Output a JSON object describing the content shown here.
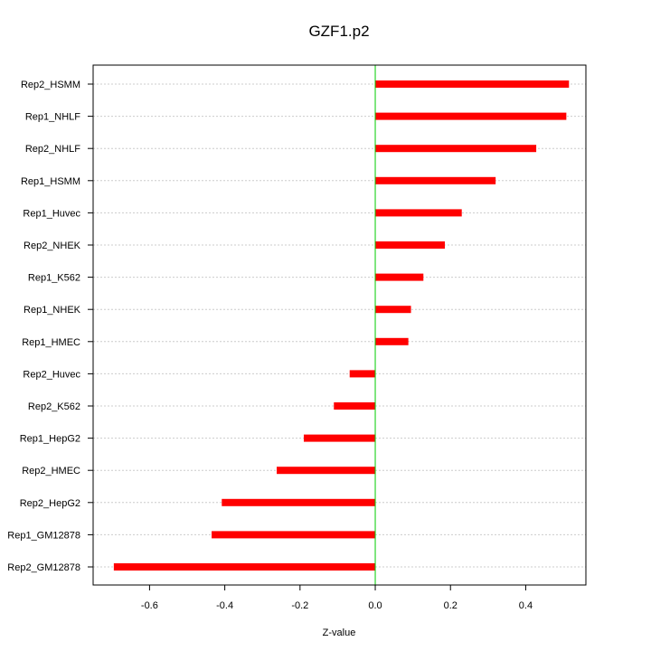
{
  "chart_data": {
    "type": "bar",
    "orientation": "horizontal",
    "title": "GZF1.p2",
    "xlabel": "Z-value",
    "ylabel": "",
    "xlim": [
      -0.75,
      0.56
    ],
    "xticks": [
      -0.6,
      -0.4,
      -0.2,
      0.0,
      0.2,
      0.4
    ],
    "xtick_labels": [
      "-0.6",
      "-0.4",
      "-0.2",
      "0.0",
      "0.2",
      "0.4"
    ],
    "categories": [
      "Rep2_HSMM",
      "Rep1_NHLF",
      "Rep2_NHLF",
      "Rep1_HSMM",
      "Rep1_Huvec",
      "Rep2_NHEK",
      "Rep1_K562",
      "Rep1_NHEK",
      "Rep1_HMEC",
      "Rep2_Huvec",
      "Rep2_K562",
      "Rep1_HepG2",
      "Rep2_HMEC",
      "Rep2_HepG2",
      "Rep1_GM12878",
      "Rep2_GM12878"
    ],
    "values": [
      0.515,
      0.508,
      0.428,
      0.32,
      0.23,
      0.185,
      0.128,
      0.095,
      0.088,
      -0.068,
      -0.11,
      -0.19,
      -0.262,
      -0.408,
      -0.435,
      -0.695
    ],
    "bar_color": "#ff0000",
    "zero_line_color": "#00cc00",
    "grid": true
  }
}
